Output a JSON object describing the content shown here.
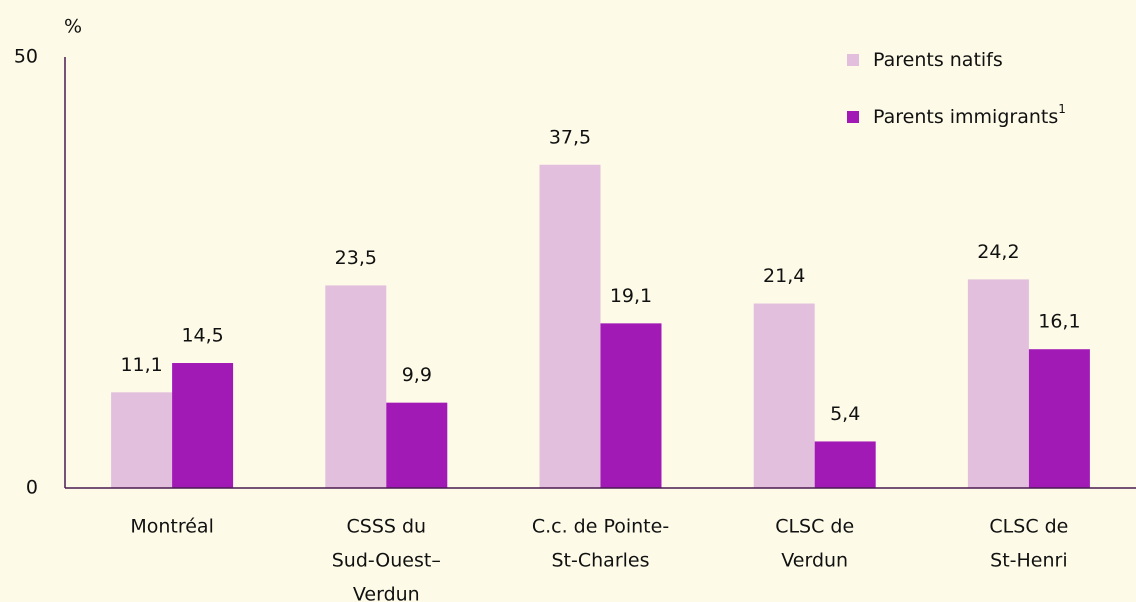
{
  "chart_data": {
    "type": "bar",
    "y_axis_label": "%",
    "categories": [
      [
        "Montréal"
      ],
      [
        "CSSS du",
        "Sud-Ouest–",
        "Verdun"
      ],
      [
        "C.c. de Pointe-",
        "St-Charles"
      ],
      [
        "CLSC de",
        "Verdun"
      ],
      [
        "CLSC de",
        "St-Henri"
      ]
    ],
    "series": [
      {
        "name": "Parents natifs",
        "color": "#e2bfdc",
        "values": [
          11.1,
          23.5,
          37.5,
          21.4,
          24.2
        ],
        "value_labels": [
          "11,1",
          "23,5",
          "37,5",
          "21,4",
          "24,2"
        ]
      },
      {
        "name": "Parents immigrants",
        "note_marker": "1",
        "color": "#a21ab6",
        "values": [
          14.5,
          9.9,
          19.1,
          5.4,
          16.1
        ],
        "value_labels": [
          "14,5",
          "9,9",
          "19,1",
          "5,4",
          "16,1"
        ]
      }
    ],
    "ylim": [
      0,
      50
    ],
    "yticks": [
      0,
      50
    ],
    "legend": "top-right"
  }
}
